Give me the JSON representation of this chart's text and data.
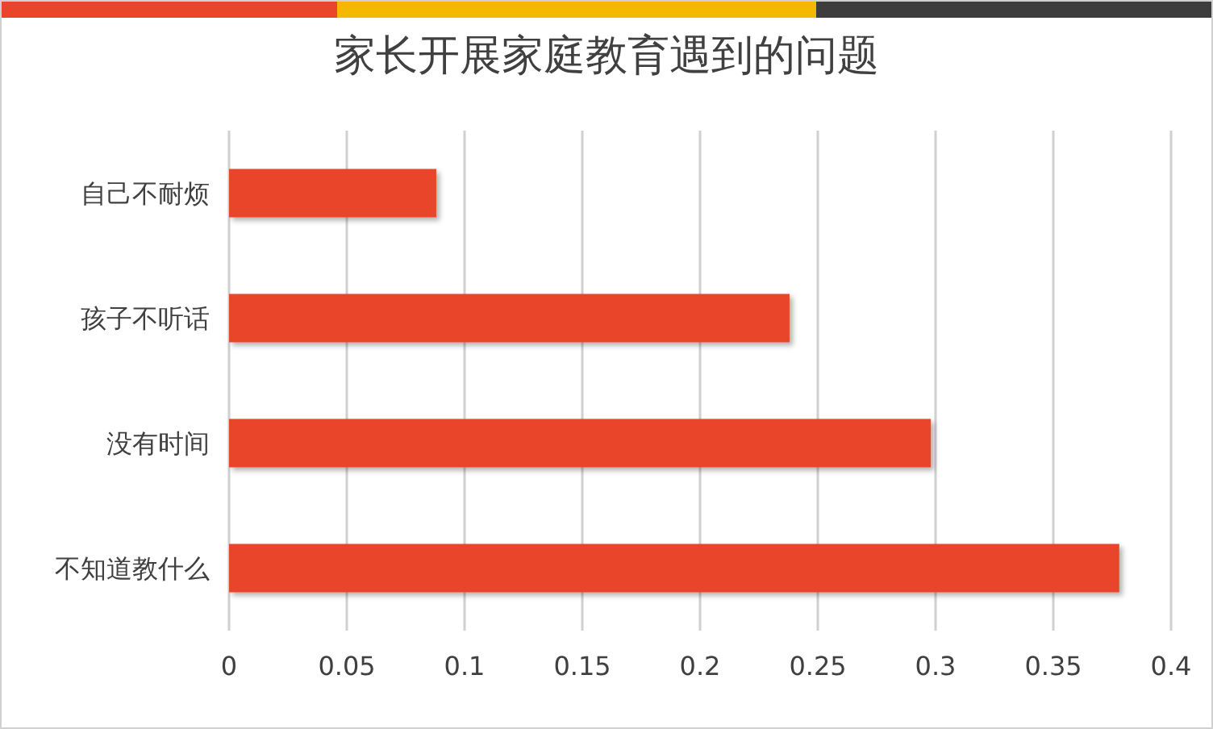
{
  "chart_data": {
    "type": "bar",
    "orientation": "horizontal",
    "title": "家长开展家庭教育遇到的问题",
    "categories": [
      "自己不耐烦",
      "孩子不听话",
      "没有时间",
      "不知道教什么"
    ],
    "values": [
      0.088,
      0.238,
      0.298,
      0.378
    ],
    "color": "#e8452c",
    "xlim": [
      0,
      0.4
    ],
    "xticks": [
      0,
      0.05,
      0.1,
      0.15,
      0.2,
      0.25,
      0.3,
      0.35,
      0.4
    ],
    "grid": "x"
  }
}
